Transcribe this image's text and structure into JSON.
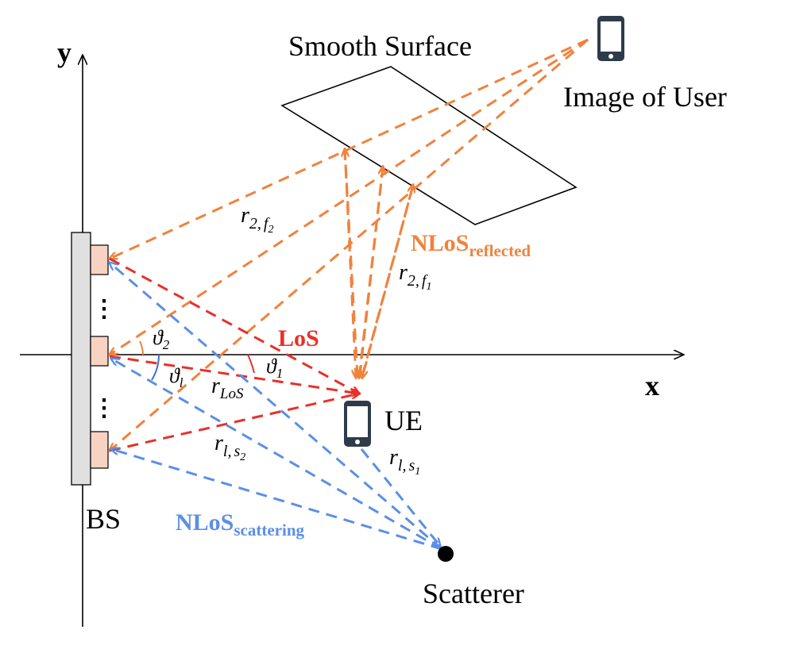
{
  "colors": {
    "orange": "#f0823c",
    "red": "#e8302a",
    "blue": "#5b8fe6",
    "black": "#000000",
    "bs_fill": "#e0e0e0",
    "element_fill": "#f8d2c2"
  },
  "axes": {
    "x_label": "x",
    "y_label": "y"
  },
  "labels": {
    "smooth_surface": "Smooth Surface",
    "image_of_user": "Image of User",
    "ue": "UE",
    "bs": "BS",
    "scatterer": "Scatterer",
    "los": "LoS",
    "nlos_reflected_main": "NLoS",
    "nlos_reflected_sub": "reflected",
    "nlos_scattering_main": "NLoS",
    "nlos_scattering_sub": "scattering"
  },
  "math": {
    "r": "r",
    "r2f2_sub_a": "2",
    "r2f2_sub_sep": ",",
    "r2f2_sub_b": "f",
    "r2f2_sub_c": "2",
    "r2f1_sub_a": "2",
    "r2f1_sub_sep": ",",
    "r2f1_sub_b": "f",
    "r2f1_sub_c": "1",
    "rlos_sub": "LoS",
    "rls2_sub_a": "l",
    "rls2_sub_sep": ",",
    "rls2_sub_b": "s",
    "rls2_sub_c": "2",
    "rls1_sub_a": "l",
    "rls1_sub_sep": ",",
    "rls1_sub_b": "s",
    "rls1_sub_c": "1",
    "theta": "ϑ",
    "theta2_sub": "2",
    "thetal_sub": "l",
    "theta1_sub": "1",
    "dots": "⋮"
  },
  "icons": {
    "user_image": "smartphone-icon",
    "ue": "smartphone-icon",
    "scatterer": "filled-circle"
  }
}
